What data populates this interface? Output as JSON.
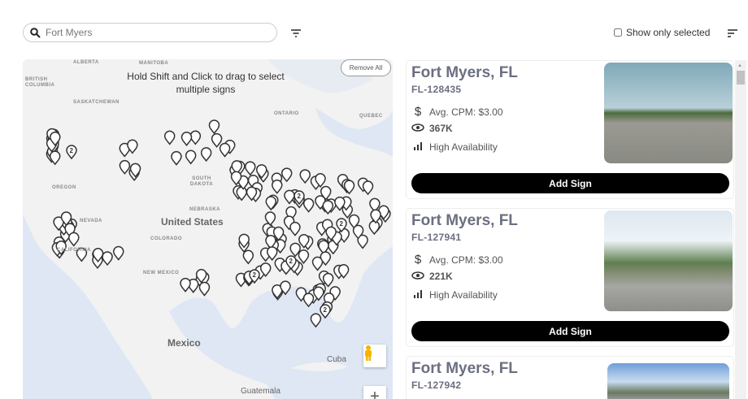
{
  "toolbar": {
    "search_value": "Fort Myers",
    "search_icon": "search-icon",
    "filter_icon": "filter-icon",
    "show_only_selected_label": "Show only selected",
    "show_only_selected_checked": false,
    "sort_icon": "sort-icon"
  },
  "map": {
    "hint": "Hold Shift and Click to drag to select multiple signs",
    "remove_all_label": "Remove All",
    "cluster_label": "2",
    "labels": {
      "british_columbia": "BRITISH COLUMBIA",
      "alberta": "ALBERTA",
      "manitoba": "MANITOBA",
      "saskatchewan": "SASKATCHEWAN",
      "ontario": "ONTARIO",
      "quebec": "QUEBEC",
      "oregon": "OREGON",
      "nevada": "NEVADA",
      "california": "CALIFORNIA",
      "south_dakota": "SOUTH DAKOTA",
      "nebraska": "NEBRASKA",
      "new_mexico": "NEW MEXICO",
      "colorado": "COLORADO",
      "united_states": "United States",
      "mexico": "Mexico",
      "cuba": "Cuba",
      "guatemala": "Guatemala"
    },
    "colors": {
      "land": "#f2f2f2",
      "water": "#dfe7f4"
    }
  },
  "listings": [
    {
      "title": "Fort Myers, FL",
      "id": "FL-128435",
      "cpm": "Avg. CPM: $3.00",
      "impressions": "367K",
      "availability": "High Availability",
      "button": "Add Sign"
    },
    {
      "title": "Fort Myers, FL",
      "id": "FL-127941",
      "cpm": "Avg. CPM: $3.00",
      "impressions": "221K",
      "availability": "High Availability",
      "button": "Add Sign"
    },
    {
      "title": "Fort Myers, FL",
      "id": "FL-127942"
    }
  ]
}
